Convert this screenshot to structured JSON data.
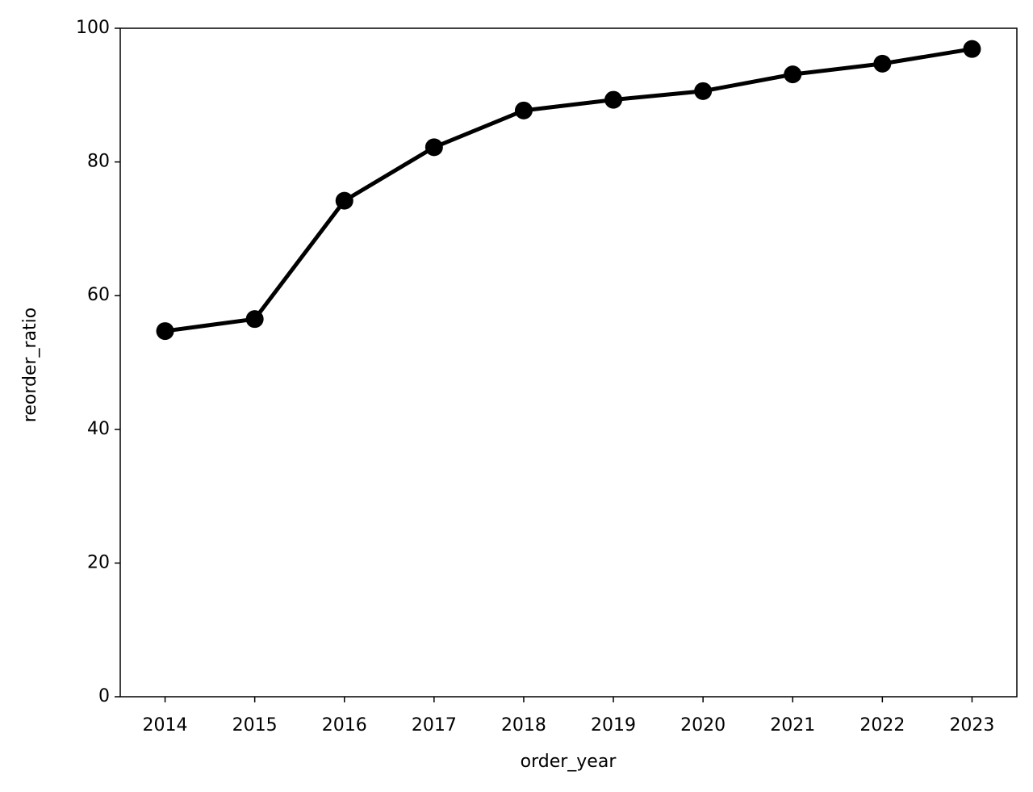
{
  "chart_data": {
    "type": "line",
    "x_label": "order_year",
    "y_label": "reorder_ratio",
    "x": [
      2014,
      2015,
      2016,
      2017,
      2018,
      2019,
      2020,
      2021,
      2022,
      2023
    ],
    "series": [
      {
        "color": "#000000",
        "values": [
          54.7,
          56.5,
          74.2,
          82.2,
          87.7,
          89.3,
          90.6,
          93.1,
          94.7,
          96.9
        ]
      }
    ],
    "xlim": [
      2013.5,
      2023.5
    ],
    "xticks": [
      2014,
      2015,
      2016,
      2017,
      2018,
      2019,
      2020,
      2021,
      2022,
      2023
    ],
    "ylim": [
      0,
      100
    ],
    "yticks": [
      0,
      20,
      40,
      60,
      80,
      100
    ],
    "grid": false
  }
}
